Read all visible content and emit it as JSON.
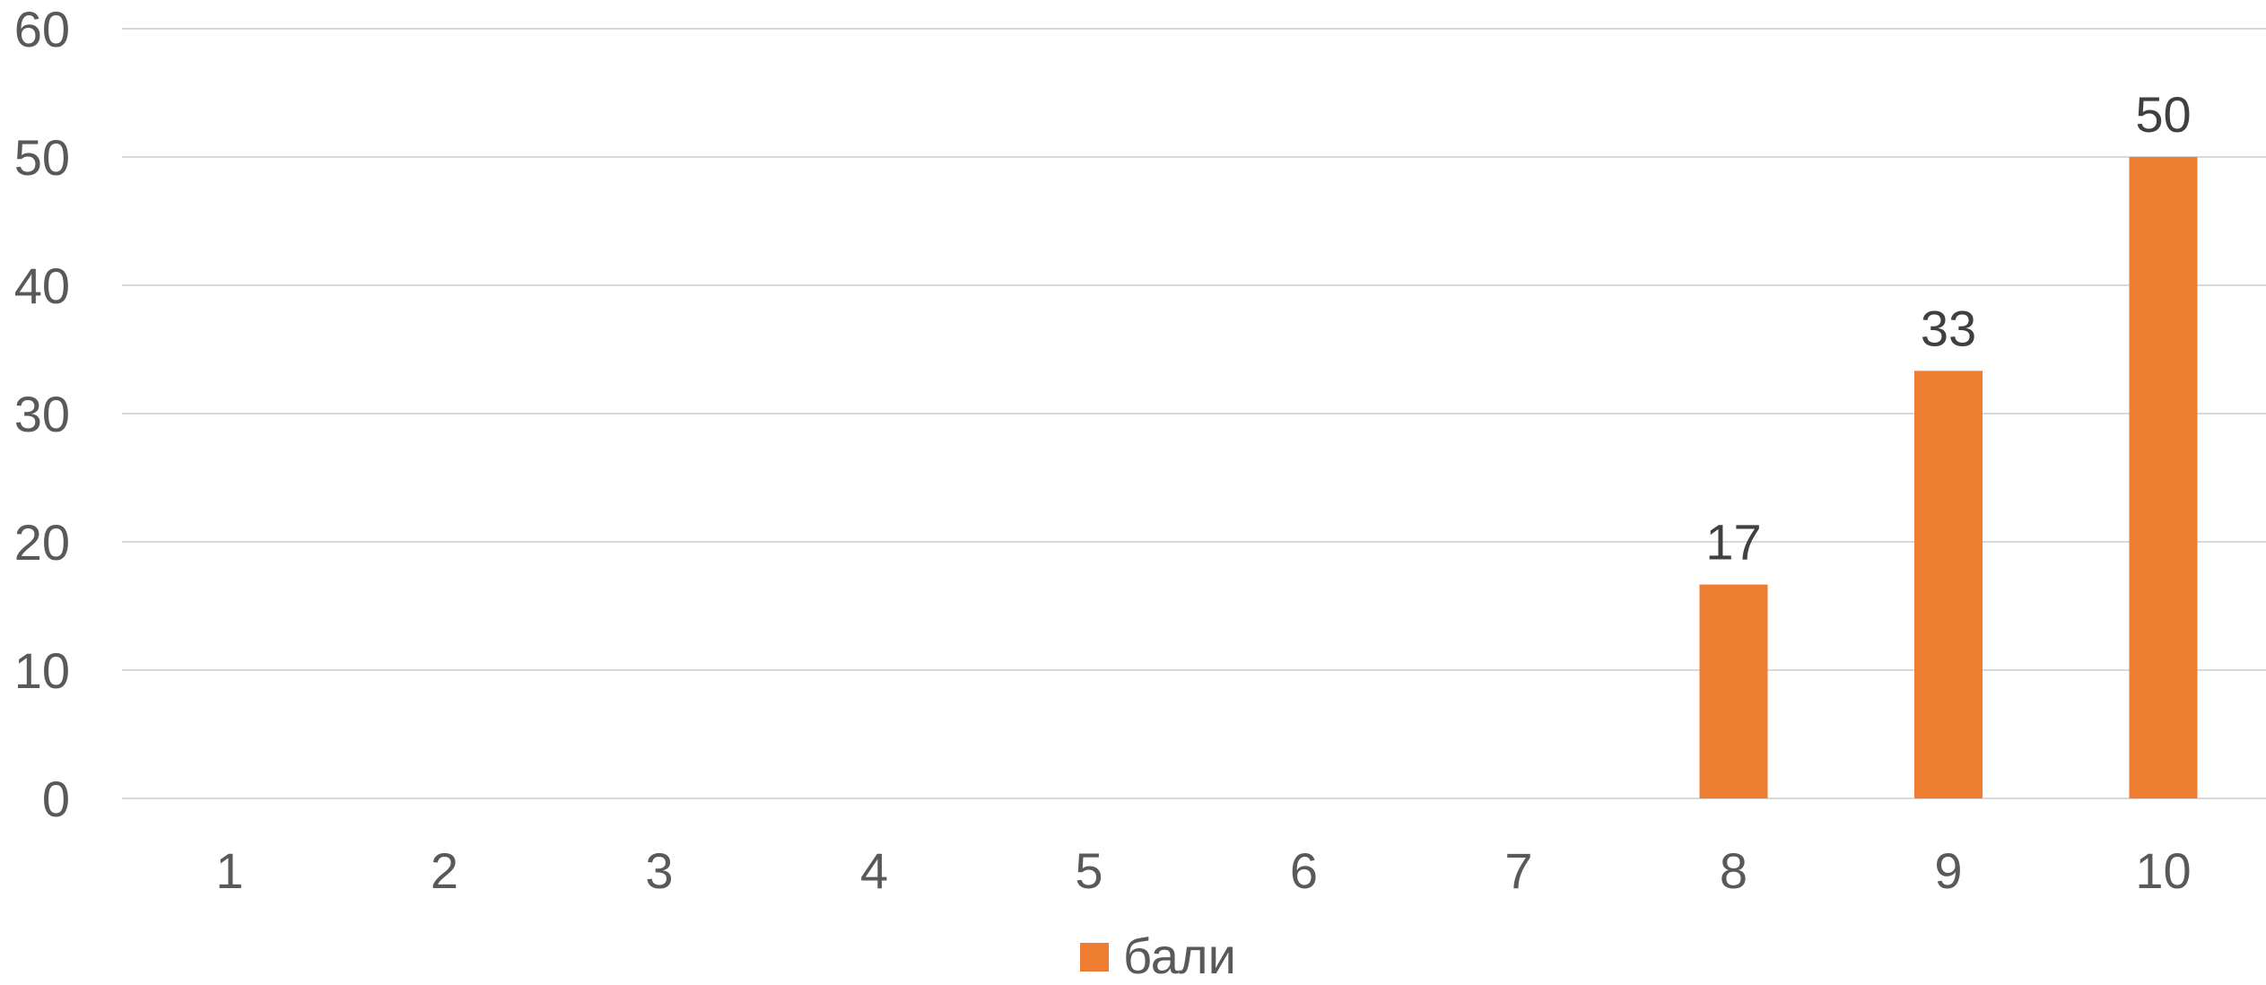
{
  "chart_data": {
    "type": "bar",
    "categories": [
      "1",
      "2",
      "3",
      "4",
      "5",
      "6",
      "7",
      "8",
      "9",
      "10"
    ],
    "series": [
      {
        "name": "бали",
        "values": [
          0,
          0,
          0,
          0,
          0,
          0,
          0,
          16.67,
          33.33,
          50
        ],
        "labels": [
          "",
          "",
          "",
          "",
          "",
          "",
          "",
          "17",
          "33",
          "50"
        ],
        "color": "#ED7D31"
      }
    ],
    "yticks": [
      "0",
      "10",
      "20",
      "30",
      "40",
      "50",
      "60"
    ],
    "ylim": [
      0,
      60
    ],
    "grid": true,
    "legend_position": "bottom",
    "colors": {
      "grid": "#D9D9D9",
      "tick_text": "#595959",
      "label_text": "#404040"
    }
  }
}
